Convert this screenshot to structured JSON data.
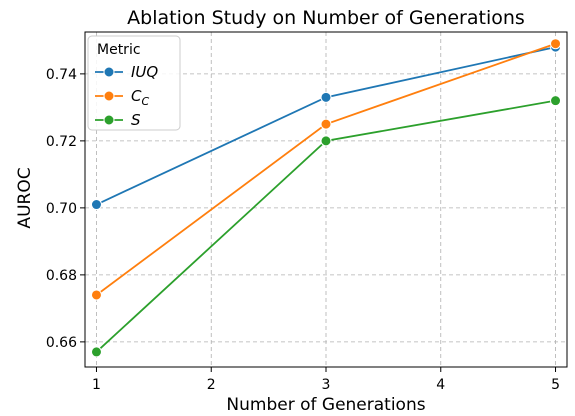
{
  "chart_data": {
    "type": "line",
    "title": "Ablation Study on Number of Generations",
    "xlabel": "Number of Generations",
    "ylabel": "AUROC",
    "x": [
      1,
      3,
      5
    ],
    "xticks": [
      "1",
      "2",
      "3",
      "4",
      "5"
    ],
    "xlim": [
      0.9,
      5.1
    ],
    "yticks": [
      "0.66",
      "0.68",
      "0.70",
      "0.72",
      "0.74"
    ],
    "ylim": [
      0.6525,
      0.7525
    ],
    "grid": true,
    "legend": {
      "title": "Metric",
      "position": "top-left"
    },
    "series": [
      {
        "name": "IUQ",
        "label_main": "IUQ",
        "label_sub": "",
        "color": "#1f77b4",
        "values": [
          0.701,
          0.733,
          0.748
        ]
      },
      {
        "name": "C_C",
        "label_main": "C",
        "label_sub": "C",
        "color": "#ff7f0e",
        "values": [
          0.674,
          0.725,
          0.749
        ]
      },
      {
        "name": "S",
        "label_main": "S",
        "label_sub": "",
        "color": "#2ca02c",
        "values": [
          0.657,
          0.72,
          0.732
        ]
      }
    ]
  }
}
